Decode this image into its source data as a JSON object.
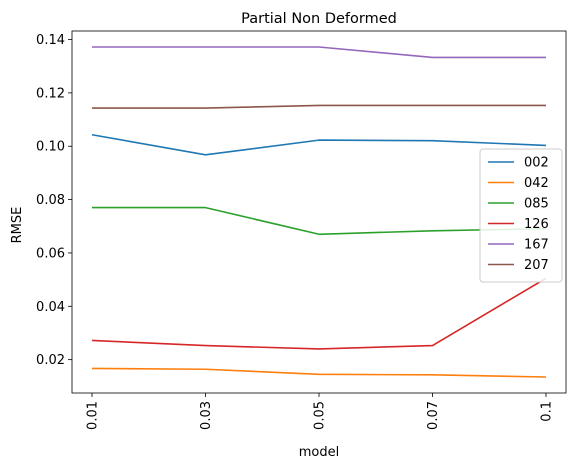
{
  "chart_data": {
    "type": "line",
    "title": "Partial Non Deformed",
    "xlabel": "model",
    "ylabel": "RMSE",
    "categories": [
      "0.01",
      "0.03",
      "0.05",
      "0.07",
      "0.1"
    ],
    "ylim": [
      0.0075,
      0.1432
    ],
    "yticks": [
      0.02,
      0.04,
      0.06,
      0.08,
      0.1,
      0.12,
      0.14
    ],
    "ytick_labels": [
      "0.02",
      "0.04",
      "0.06",
      "0.08",
      "0.10",
      "0.12",
      "0.14"
    ],
    "grid": false,
    "legend_position": "center-right",
    "series": [
      {
        "name": "002",
        "color": "#1f77b4",
        "values": [
          0.1043,
          0.0968,
          0.1023,
          0.1021,
          0.1003
        ]
      },
      {
        "name": "042",
        "color": "#ff7f0e",
        "values": [
          0.0167,
          0.0164,
          0.0145,
          0.0143,
          0.0135
        ]
      },
      {
        "name": "085",
        "color": "#2ca02c",
        "values": [
          0.077,
          0.077,
          0.067,
          0.0683,
          0.0691
        ]
      },
      {
        "name": "126",
        "color": "#d62728",
        "values": [
          0.0272,
          0.0253,
          0.024,
          0.0253,
          0.0505
        ]
      },
      {
        "name": "167",
        "color": "#9467bd",
        "values": [
          0.1372,
          0.1372,
          0.1372,
          0.1333,
          0.1333
        ]
      },
      {
        "name": "207",
        "color": "#8c564b",
        "values": [
          0.1143,
          0.1143,
          0.1153,
          0.1153,
          0.1153
        ]
      }
    ]
  }
}
